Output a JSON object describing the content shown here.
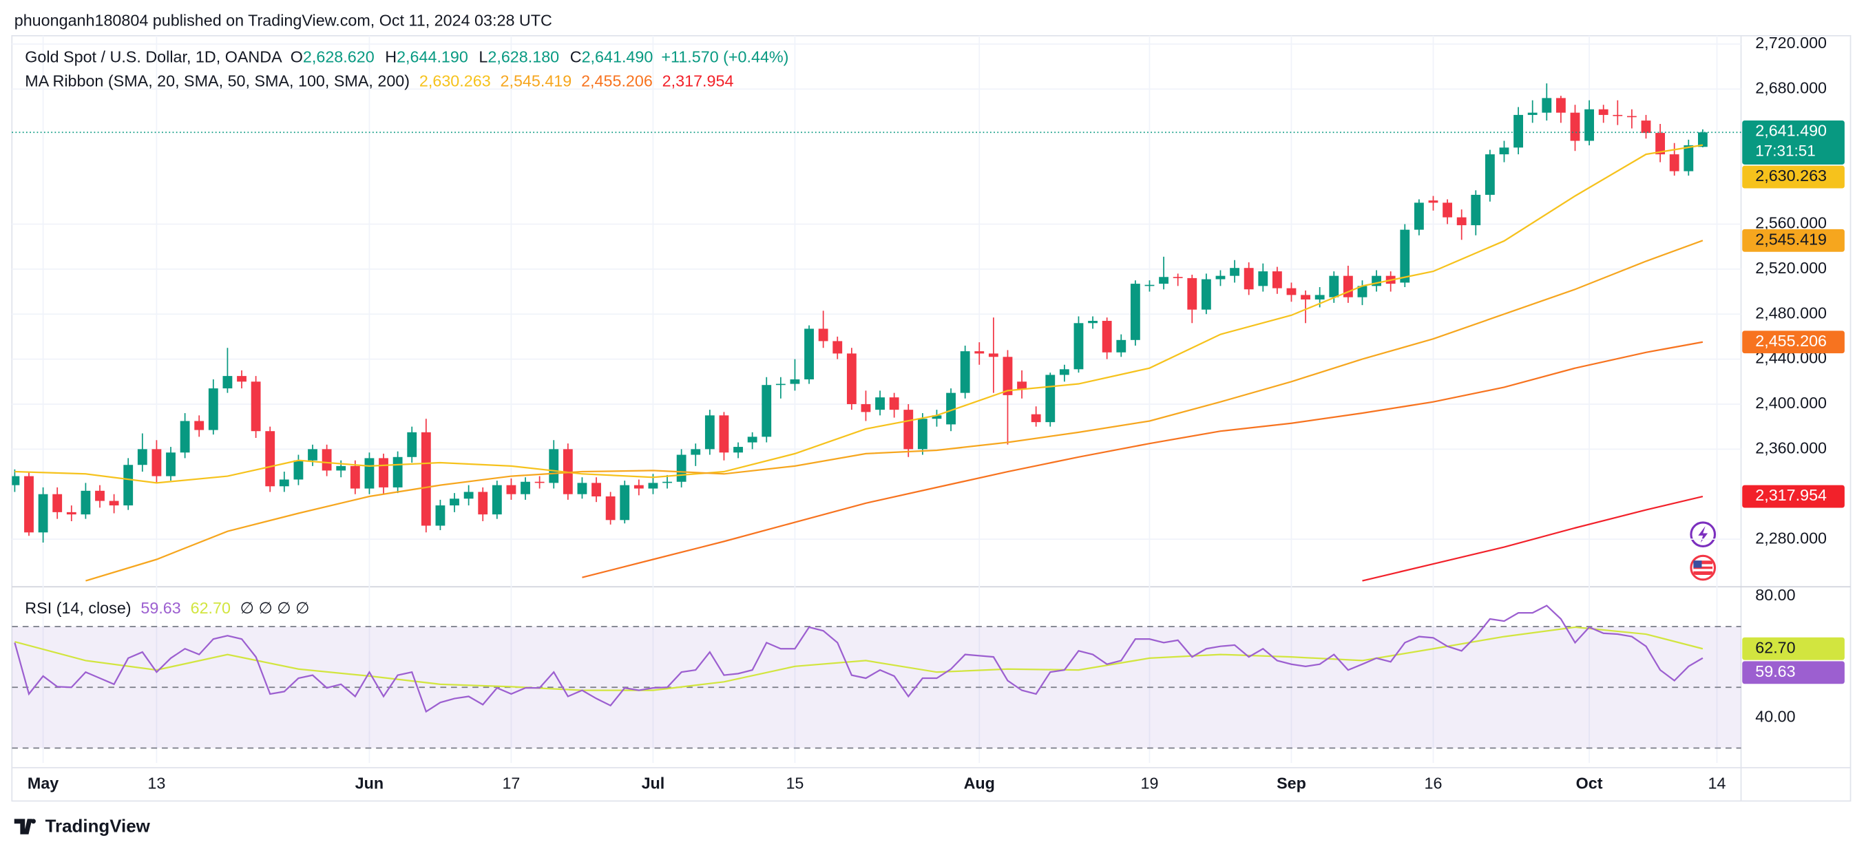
{
  "header": {
    "published": "phuonganh180804 published on TradingView.com, Oct 11, 2024 03:28 UTC"
  },
  "footer": {
    "brand": "TradingView"
  },
  "chart_data": [
    {
      "type": "candlestick",
      "title": "Gold Spot / U.S. Dollar, 1D, OANDA",
      "legend_values": [
        {
          "key": "O",
          "text": "2,628.620"
        },
        {
          "key": "H",
          "text": "2,644.190"
        },
        {
          "key": "L",
          "text": "2,628.180"
        },
        {
          "key": "C",
          "text": "2,641.490"
        }
      ],
      "change": "+11.570 (+0.44%)",
      "up_color": "#089981",
      "down_color": "#f23645",
      "xlim": [
        -0.2,
        121.7
      ],
      "xticks": [
        {
          "value": 2,
          "label": "May"
        },
        {
          "value": 10,
          "label": "13"
        },
        {
          "value": 25,
          "label": "Jun"
        },
        {
          "value": 35,
          "label": "17"
        },
        {
          "value": 45,
          "label": "Jul"
        },
        {
          "value": 55,
          "label": "15"
        },
        {
          "value": 68,
          "label": "Aug"
        },
        {
          "value": 80,
          "label": "19"
        },
        {
          "value": 90,
          "label": "Sep"
        },
        {
          "value": 100,
          "label": "16"
        },
        {
          "value": 111,
          "label": "Oct"
        },
        {
          "value": 120,
          "label": "14"
        }
      ],
      "ylim": [
        2237.7,
        2727.4
      ],
      "yticks": [
        {
          "value": 2720,
          "label": "2,720.000"
        },
        {
          "value": 2680,
          "label": "2,680.000"
        },
        {
          "value": 2560,
          "label": "2,560.000"
        },
        {
          "value": 2520,
          "label": "2,520.000"
        },
        {
          "value": 2480,
          "label": "2,480.000"
        },
        {
          "value": 2440,
          "label": "2,440.000"
        },
        {
          "value": 2400,
          "label": "2,400.000"
        },
        {
          "value": 2360,
          "label": "2,360.000"
        },
        {
          "value": 2280,
          "label": "2,280.000"
        }
      ],
      "grid": true,
      "last_price": {
        "label": "2,641.490",
        "countdown": "17:31:51"
      },
      "open": [
        2328,
        2336,
        2286,
        2320,
        2304,
        2302,
        2323,
        2314,
        2310,
        2346,
        2360,
        2336,
        2357,
        2385,
        2377,
        2414,
        2425,
        2420,
        2376,
        2327,
        2333,
        2350,
        2360,
        2341,
        2345,
        2325,
        2352,
        2326,
        2353,
        2375,
        2292,
        2310,
        2316,
        2322,
        2302,
        2328,
        2320,
        2331,
        2330,
        2360,
        2320,
        2330,
        2318,
        2297,
        2328,
        2325,
        2330,
        2331,
        2355,
        2360,
        2390,
        2357,
        2366,
        2371,
        2417,
        2418,
        2422,
        2467,
        2456,
        2445,
        2400,
        2395,
        2406,
        2395,
        2360,
        2387,
        2382,
        2410,
        2447,
        2445,
        2442,
        2420,
        2391,
        2384,
        2426,
        2431,
        2472,
        2474,
        2446,
        2457,
        2505,
        2507,
        2513,
        2512,
        2484,
        2511,
        2514,
        2521,
        2505,
        2518,
        2503,
        2497,
        2493,
        2495,
        2514,
        2495,
        2505,
        2514,
        2508,
        2555,
        2581,
        2579,
        2566,
        2559,
        2586,
        2622,
        2628,
        2657,
        2659,
        2672,
        2659,
        2634,
        2662,
        2657,
        2656,
        2652,
        2641,
        2622,
        2607,
        2628.62
      ],
      "high": [
        2342,
        2340,
        2326,
        2326,
        2310,
        2330,
        2328,
        2320,
        2352,
        2374,
        2368,
        2362,
        2392,
        2390,
        2422,
        2450,
        2430,
        2425,
        2380,
        2340,
        2355,
        2364,
        2364,
        2350,
        2350,
        2357,
        2356,
        2358,
        2380,
        2387,
        2315,
        2321,
        2328,
        2326,
        2332,
        2334,
        2335,
        2336,
        2368,
        2365,
        2335,
        2335,
        2322,
        2332,
        2333,
        2338,
        2337,
        2360,
        2365,
        2395,
        2393,
        2366,
        2375,
        2424,
        2424,
        2440,
        2470,
        2483,
        2460,
        2450,
        2412,
        2412,
        2410,
        2400,
        2392,
        2395,
        2414,
        2452,
        2455,
        2477,
        2448,
        2430,
        2398,
        2428,
        2435,
        2478,
        2478,
        2477,
        2462,
        2510,
        2510,
        2531,
        2516,
        2515,
        2516,
        2519,
        2528,
        2526,
        2525,
        2522,
        2508,
        2501,
        2504,
        2518,
        2523,
        2510,
        2519,
        2518,
        2560,
        2582,
        2585,
        2582,
        2573,
        2590,
        2626,
        2634,
        2664,
        2670,
        2685,
        2674,
        2666,
        2670,
        2666,
        2670,
        2662,
        2657,
        2649,
        2632,
        2635,
        2644.19
      ],
      "low": [
        2322,
        2283,
        2277,
        2298,
        2296,
        2298,
        2308,
        2303,
        2306,
        2340,
        2330,
        2332,
        2352,
        2371,
        2373,
        2410,
        2414,
        2370,
        2322,
        2322,
        2328,
        2345,
        2336,
        2335,
        2320,
        2320,
        2320,
        2321,
        2348,
        2286,
        2288,
        2304,
        2310,
        2296,
        2298,
        2315,
        2315,
        2325,
        2325,
        2315,
        2316,
        2313,
        2293,
        2294,
        2319,
        2320,
        2325,
        2326,
        2345,
        2355,
        2350,
        2352,
        2360,
        2366,
        2405,
        2412,
        2418,
        2450,
        2440,
        2395,
        2385,
        2390,
        2388,
        2353,
        2355,
        2380,
        2376,
        2405,
        2435,
        2410,
        2364,
        2405,
        2380,
        2380,
        2420,
        2428,
        2467,
        2440,
        2442,
        2452,
        2500,
        2502,
        2505,
        2472,
        2480,
        2505,
        2508,
        2497,
        2500,
        2498,
        2491,
        2472,
        2486,
        2490,
        2490,
        2488,
        2500,
        2500,
        2504,
        2550,
        2572,
        2560,
        2546,
        2550,
        2580,
        2615,
        2622,
        2650,
        2652,
        2650,
        2625,
        2630,
        2650,
        2648,
        2645,
        2636,
        2615,
        2603,
        2603,
        2628.18
      ],
      "close": [
        2336,
        2286,
        2320,
        2304,
        2302,
        2323,
        2314,
        2310,
        2346,
        2360,
        2336,
        2357,
        2385,
        2377,
        2414,
        2425,
        2420,
        2376,
        2327,
        2333,
        2350,
        2360,
        2341,
        2345,
        2325,
        2352,
        2326,
        2353,
        2375,
        2292,
        2310,
        2316,
        2322,
        2302,
        2328,
        2320,
        2331,
        2330,
        2360,
        2320,
        2330,
        2318,
        2297,
        2328,
        2325,
        2330,
        2331,
        2355,
        2360,
        2390,
        2357,
        2362,
        2371,
        2417,
        2418,
        2422,
        2467,
        2456,
        2445,
        2400,
        2393,
        2406,
        2395,
        2360,
        2387,
        2390,
        2410,
        2447,
        2445,
        2442,
        2408,
        2413,
        2384,
        2426,
        2431,
        2472,
        2474,
        2446,
        2457,
        2507,
        2506,
        2513,
        2512,
        2484,
        2511,
        2514,
        2521,
        2502,
        2518,
        2503,
        2497,
        2493,
        2497,
        2514,
        2495,
        2505,
        2514,
        2507,
        2555,
        2579,
        2579,
        2566,
        2559,
        2586,
        2622,
        2628,
        2657,
        2659,
        2672,
        2659,
        2634,
        2662,
        2657,
        2656,
        2655,
        2641,
        2622,
        2607,
        2630,
        2641.49
      ],
      "overlay": {
        "name": "MA Ribbon (SMA, 20, SMA, 50, SMA, 100, SMA, 200)",
        "series": [
          {
            "color": "#f6c21c",
            "label_text_color": "#131722",
            "last_label": "2,630.263",
            "x": [
              0,
              5,
              10,
              15,
              20,
              25,
              30,
              35,
              40,
              45,
              50,
              55,
              60,
              65,
              70,
              75,
              80,
              85,
              90,
              95,
              100,
              105,
              110,
              115,
              119
            ],
            "values": [
              2340,
              2338,
              2330,
              2336,
              2350,
              2345,
              2348,
              2345,
              2338,
              2335,
              2340,
              2356,
              2378,
              2390,
              2412,
              2418,
              2432,
              2462,
              2479,
              2505,
              2518,
              2545,
              2585,
              2622,
              2630.263
            ]
          },
          {
            "color": "#f6a61e",
            "label_text_color": "#131722",
            "last_label": "2,545.419",
            "x": [
              0,
              5,
              10,
              15,
              20,
              25,
              30,
              35,
              40,
              45,
              50,
              55,
              60,
              65,
              70,
              75,
              80,
              85,
              90,
              95,
              100,
              105,
              110,
              115,
              119
            ],
            "values": [
              null,
              2243,
              2262,
              2287,
              2303,
              2318,
              2328,
              2336,
              2340,
              2341,
              2338,
              2345,
              2356,
              2359,
              2366,
              2375,
              2385,
              2402,
              2420,
              2440,
              2458,
              2480,
              2502,
              2527,
              2545.419
            ]
          },
          {
            "color": "#f7731f",
            "label_text_color": "#ffffff",
            "last_label": "2,455.206",
            "x": [
              0,
              5,
              10,
              15,
              20,
              25,
              30,
              35,
              40,
              45,
              50,
              55,
              60,
              65,
              70,
              75,
              80,
              85,
              90,
              95,
              100,
              105,
              110,
              115,
              119
            ],
            "values": [
              null,
              null,
              null,
              null,
              null,
              null,
              null,
              null,
              2246,
              2262,
              2278,
              2295,
              2312,
              2326,
              2340,
              2353,
              2365,
              2376,
              2383,
              2392,
              2402,
              2415,
              2432,
              2446,
              2455.206
            ]
          },
          {
            "color": "#f2212a",
            "label_text_color": "#ffffff",
            "last_label": "2,317.954",
            "x": [
              0,
              5,
              10,
              15,
              20,
              25,
              30,
              35,
              40,
              45,
              50,
              55,
              60,
              65,
              70,
              75,
              80,
              85,
              90,
              95,
              100,
              105,
              110,
              115,
              119
            ],
            "values": [
              null,
              null,
              null,
              null,
              null,
              null,
              null,
              null,
              null,
              null,
              null,
              null,
              null,
              null,
              null,
              null,
              null,
              null,
              null,
              2243,
              2258,
              2273,
              2290,
              2306,
              2317.954
            ]
          }
        ]
      }
    },
    {
      "type": "line",
      "title": "RSI (14, close)",
      "legend_extra": "∅ ∅ ∅ ∅",
      "ylim": [
        25.1,
        83.1
      ],
      "yticks": [
        {
          "value": 80,
          "label": "80.00"
        },
        {
          "value": 40,
          "label": "40.00"
        }
      ],
      "hlines": [
        70,
        50,
        30
      ],
      "band": [
        30,
        70
      ],
      "band_color": "#7e57c2",
      "series": [
        {
          "color": "#9c5fd0",
          "label_text_color": "#ffffff",
          "last_label": "59.63",
          "values": [
            64.7,
            47.8,
            53.7,
            50.2,
            50,
            55,
            53,
            51,
            59.6,
            61.6,
            55,
            59.6,
            62.7,
            60.8,
            65.9,
            67,
            65.9,
            60,
            47.8,
            48.6,
            53,
            54,
            49.8,
            51,
            47,
            55,
            47,
            54,
            55,
            42,
            45,
            46.3,
            47,
            44.3,
            49.8,
            47.8,
            49.8,
            49.8,
            55,
            47,
            49,
            46.3,
            44,
            49.8,
            49,
            49.8,
            50,
            55,
            55.7,
            61.6,
            54,
            54.5,
            55.7,
            64.7,
            62.7,
            62.7,
            69.8,
            68.6,
            64.7,
            54,
            53,
            55.7,
            53.7,
            47,
            53,
            53,
            56,
            60.8,
            60.4,
            60,
            52.2,
            49,
            47.8,
            55,
            55.7,
            62,
            60.8,
            57.6,
            58.8,
            65.9,
            65.9,
            64.7,
            65.5,
            60,
            62.7,
            63.5,
            63.9,
            60,
            62.7,
            58.8,
            57.6,
            56.9,
            57.6,
            60.8,
            55.7,
            57.6,
            59.6,
            58.4,
            64.7,
            66.7,
            66.3,
            63.5,
            62,
            66.7,
            72.5,
            71.8,
            74.5,
            74.5,
            76.9,
            72.5,
            64.7,
            69.8,
            67.8,
            67.5,
            66.7,
            63.5,
            55.7,
            52.2,
            56.9,
            59.63
          ]
        },
        {
          "color": "#d2e53f",
          "label_text_color": "#131722",
          "last_label": "62.70",
          "x": [
            0,
            5,
            10,
            15,
            20,
            25,
            30,
            35,
            40,
            45,
            50,
            55,
            60,
            65,
            70,
            75,
            80,
            85,
            90,
            95,
            100,
            105,
            110,
            115,
            119
          ],
          "values": [
            65,
            58.8,
            55.7,
            60.8,
            56,
            53.7,
            51,
            50.2,
            49,
            49,
            51.8,
            56.9,
            58.8,
            55,
            56,
            55.7,
            59.6,
            60.8,
            60,
            58.8,
            62.7,
            66.7,
            69.8,
            67.5,
            62.7
          ]
        }
      ]
    }
  ]
}
